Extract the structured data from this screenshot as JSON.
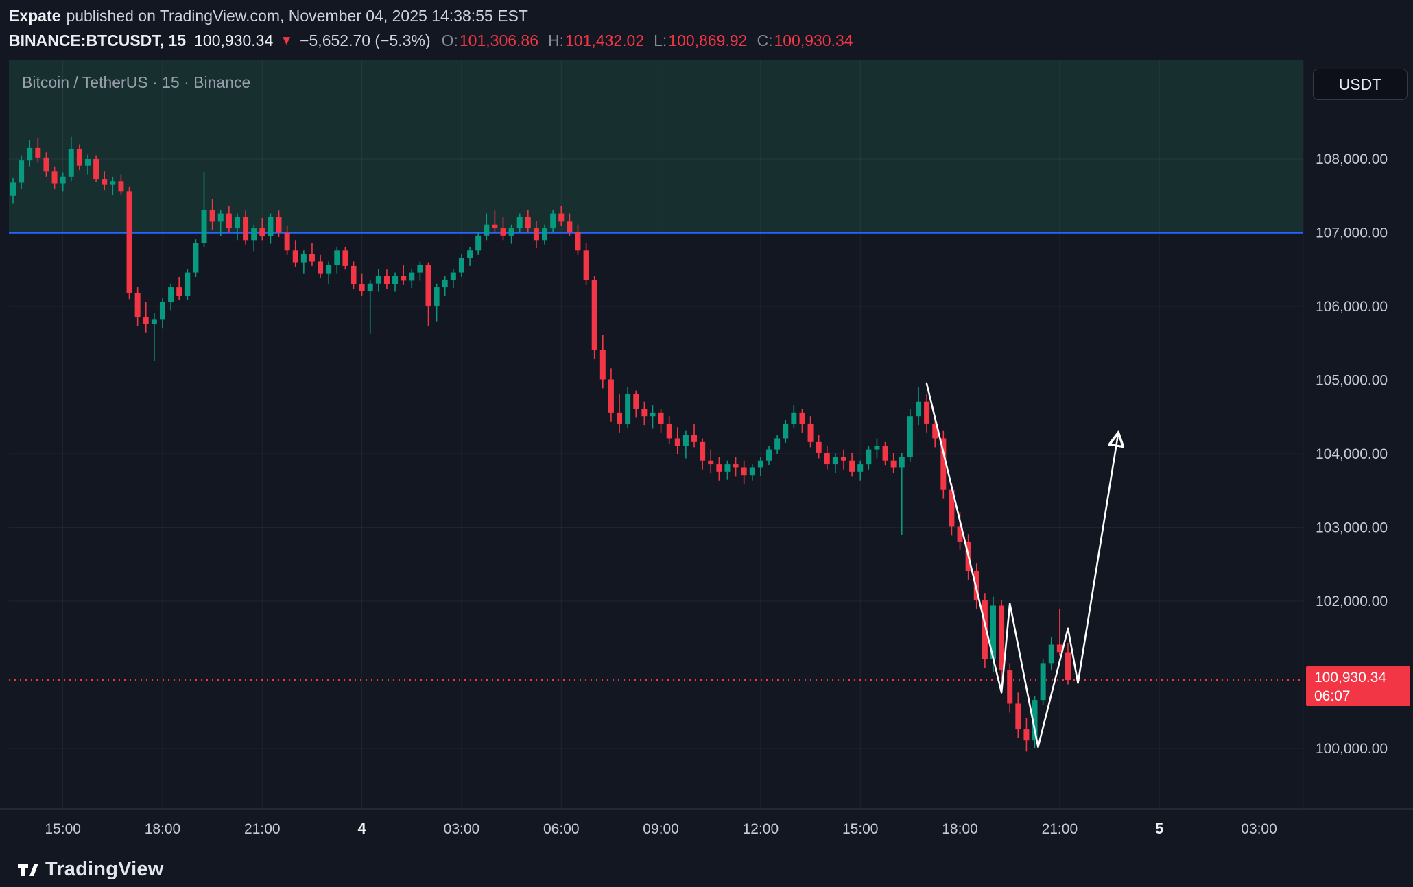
{
  "header": {
    "publisher": "Expate",
    "published": "published on TradingView.com, November 04, 2025 14:38:55 EST",
    "symbol": "BINANCE:BTCUSDT, 15",
    "last_price": "100,930.34",
    "direction": "▼",
    "change": "−5,652.70 (−5.3%)",
    "ohlc": [
      {
        "label": "O:",
        "value": "101,306.86"
      },
      {
        "label": "H:",
        "value": "101,432.02"
      },
      {
        "label": "L:",
        "value": "100,869.92"
      },
      {
        "label": "C:",
        "value": "100,930.34"
      }
    ]
  },
  "chart": {
    "title": "Bitcoin / TetherUS · 15 · Binance",
    "currency_button": "USDT",
    "price_badge": {
      "price": "100,930.34",
      "countdown": "06:07"
    }
  },
  "footer": {
    "brand": "TradingView"
  },
  "chart_data": {
    "type": "candlestick",
    "symbol": "BINANCE:BTCUSDT",
    "interval_minutes": 15,
    "title": "Bitcoin / TetherUS · 15 · Binance",
    "ylim": [
      99182,
      109349
    ],
    "grid": true,
    "legend_position": "none",
    "colors": {
      "up": "#089981",
      "down": "#f23645",
      "zone": "rgba(46,143,103,0.20)",
      "projection": "#ffffff"
    },
    "zone": {
      "from_price": 107000,
      "fill": "rgba(46,143,103,0.20)"
    },
    "current_price": 100930.34,
    "horizontal_lines": [
      {
        "price": 107000,
        "color": "#2962ff",
        "style": "solid",
        "name": "resistance-line"
      },
      {
        "price": 100930.34,
        "color": "#f23645",
        "style": "dotted",
        "name": "current-price-line"
      }
    ],
    "price_axis_labels": [
      {
        "price": 108000,
        "label": "108,000.00"
      },
      {
        "price": 107000,
        "label": "107,000.00"
      },
      {
        "price": 106000,
        "label": "106,000.00"
      },
      {
        "price": 105000,
        "label": "105,000.00"
      },
      {
        "price": 104000,
        "label": "104,000.00"
      },
      {
        "price": 103000,
        "label": "103,000.00"
      },
      {
        "price": 102000,
        "label": "102,000.00"
      },
      {
        "price": 100000,
        "label": "100,000.00"
      }
    ],
    "time_axis_labels": [
      {
        "label": "15:00",
        "index": 6
      },
      {
        "label": "18:00",
        "index": 18
      },
      {
        "label": "21:00",
        "index": 30
      },
      {
        "label": "4",
        "index": 42,
        "bold": true
      },
      {
        "label": "03:00",
        "index": 54
      },
      {
        "label": "06:00",
        "index": 66
      },
      {
        "label": "09:00",
        "index": 78
      },
      {
        "label": "12:00",
        "index": 90
      },
      {
        "label": "15:00",
        "index": 102
      },
      {
        "label": "18:00",
        "index": 114
      },
      {
        "label": "21:00",
        "index": 126
      },
      {
        "label": "5",
        "index": 138,
        "bold": true
      },
      {
        "label": "03:00",
        "index": 150
      }
    ],
    "candles": [
      [
        107500,
        107750,
        107400,
        107680
      ],
      [
        107680,
        108050,
        107600,
        107980
      ],
      [
        107980,
        108260,
        107900,
        108150
      ],
      [
        108150,
        108290,
        107950,
        108020
      ],
      [
        108020,
        108090,
        107760,
        107830
      ],
      [
        107830,
        107900,
        107590,
        107670
      ],
      [
        107670,
        107820,
        107560,
        107760
      ],
      [
        107760,
        108300,
        107700,
        108140
      ],
      [
        108140,
        108200,
        107850,
        107910
      ],
      [
        107910,
        108060,
        107790,
        108000
      ],
      [
        108000,
        108050,
        107690,
        107730
      ],
      [
        107730,
        107830,
        107580,
        107650
      ],
      [
        107650,
        107760,
        107510,
        107700
      ],
      [
        107700,
        107790,
        107520,
        107560
      ],
      [
        107560,
        107620,
        106100,
        106180
      ],
      [
        106180,
        106260,
        105740,
        105860
      ],
      [
        105860,
        106060,
        105640,
        105760
      ],
      [
        105760,
        105910,
        105260,
        105820
      ],
      [
        105820,
        106110,
        105700,
        106060
      ],
      [
        106060,
        106310,
        105950,
        106260
      ],
      [
        106260,
        106400,
        106090,
        106140
      ],
      [
        106140,
        106510,
        106090,
        106460
      ],
      [
        106460,
        106910,
        106400,
        106860
      ],
      [
        106860,
        107820,
        106800,
        107310
      ],
      [
        107310,
        107460,
        107040,
        107150
      ],
      [
        107150,
        107310,
        106950,
        107260
      ],
      [
        107260,
        107360,
        107000,
        107060
      ],
      [
        107060,
        107260,
        106900,
        107210
      ],
      [
        107210,
        107300,
        106840,
        106900
      ],
      [
        106900,
        107110,
        106750,
        107060
      ],
      [
        107060,
        107200,
        106900,
        106950
      ],
      [
        106950,
        107260,
        106850,
        107210
      ],
      [
        107210,
        107300,
        106940,
        107000
      ],
      [
        107000,
        107100,
        106700,
        106760
      ],
      [
        106760,
        106900,
        106540,
        106600
      ],
      [
        106600,
        106760,
        106450,
        106710
      ],
      [
        106710,
        106860,
        106550,
        106610
      ],
      [
        106610,
        106700,
        106390,
        106450
      ],
      [
        106450,
        106610,
        106300,
        106560
      ],
      [
        106560,
        106810,
        106450,
        106760
      ],
      [
        106760,
        106810,
        106500,
        106550
      ],
      [
        106550,
        106610,
        106240,
        106300
      ],
      [
        106300,
        106450,
        106140,
        106210
      ],
      [
        106210,
        106360,
        105630,
        106310
      ],
      [
        106310,
        106510,
        106200,
        106410
      ],
      [
        106410,
        106500,
        106240,
        106300
      ],
      [
        106300,
        106460,
        106200,
        106410
      ],
      [
        106410,
        106560,
        106290,
        106350
      ],
      [
        106350,
        106510,
        106250,
        106460
      ],
      [
        106460,
        106610,
        106350,
        106560
      ],
      [
        106560,
        106600,
        105740,
        106010
      ],
      [
        106010,
        106310,
        105790,
        106260
      ],
      [
        106260,
        106410,
        106140,
        106360
      ],
      [
        106360,
        106510,
        106250,
        106460
      ],
      [
        106460,
        106710,
        106400,
        106660
      ],
      [
        106660,
        106810,
        106550,
        106760
      ],
      [
        106760,
        107010,
        106700,
        106960
      ],
      [
        106960,
        107260,
        106900,
        107110
      ],
      [
        107110,
        107300,
        107000,
        107060
      ],
      [
        107060,
        107210,
        106900,
        106960
      ],
      [
        106960,
        107110,
        106850,
        107060
      ],
      [
        107060,
        107260,
        107000,
        107210
      ],
      [
        107210,
        107310,
        107000,
        107060
      ],
      [
        107060,
        107160,
        106790,
        106900
      ],
      [
        106900,
        107110,
        106840,
        107060
      ],
      [
        107060,
        107310,
        107000,
        107260
      ],
      [
        107260,
        107360,
        107090,
        107150
      ],
      [
        107150,
        107260,
        106950,
        107010
      ],
      [
        107010,
        107110,
        106700,
        106760
      ],
      [
        106760,
        106860,
        106290,
        106360
      ],
      [
        106360,
        106410,
        105290,
        105410
      ],
      [
        105410,
        105610,
        104890,
        105010
      ],
      [
        105010,
        105160,
        104440,
        104560
      ],
      [
        104560,
        104810,
        104290,
        104410
      ],
      [
        104410,
        104910,
        104350,
        104810
      ],
      [
        104810,
        104860,
        104490,
        104610
      ],
      [
        104610,
        104710,
        104390,
        104510
      ],
      [
        104510,
        104660,
        104340,
        104560
      ],
      [
        104560,
        104610,
        104290,
        104410
      ],
      [
        104410,
        104510,
        104140,
        104210
      ],
      [
        104210,
        104360,
        103990,
        104110
      ],
      [
        104110,
        104310,
        103940,
        104260
      ],
      [
        104260,
        104410,
        104090,
        104160
      ],
      [
        104160,
        104210,
        103790,
        103910
      ],
      [
        103910,
        104060,
        103740,
        103860
      ],
      [
        103860,
        103960,
        103640,
        103760
      ],
      [
        103760,
        103910,
        103650,
        103860
      ],
      [
        103860,
        103960,
        103690,
        103810
      ],
      [
        103810,
        103910,
        103590,
        103710
      ],
      [
        103710,
        103860,
        103640,
        103810
      ],
      [
        103810,
        103960,
        103700,
        103910
      ],
      [
        103910,
        104110,
        103850,
        104060
      ],
      [
        104060,
        104260,
        104000,
        104210
      ],
      [
        104210,
        104460,
        104150,
        104410
      ],
      [
        104410,
        104660,
        104350,
        104560
      ],
      [
        104560,
        104610,
        104290,
        104410
      ],
      [
        104410,
        104510,
        104090,
        104160
      ],
      [
        104160,
        104260,
        103940,
        104010
      ],
      [
        104010,
        104110,
        103790,
        103860
      ],
      [
        103860,
        104010,
        103740,
        103960
      ],
      [
        103960,
        104060,
        103790,
        103910
      ],
      [
        103910,
        104010,
        103690,
        103760
      ],
      [
        103760,
        103910,
        103640,
        103860
      ],
      [
        103860,
        104110,
        103790,
        104060
      ],
      [
        104060,
        104210,
        103940,
        104110
      ],
      [
        104110,
        104160,
        103840,
        103910
      ],
      [
        103910,
        104010,
        103740,
        103810
      ],
      [
        103810,
        104010,
        102900,
        103960
      ],
      [
        103960,
        104610,
        103890,
        104510
      ],
      [
        104510,
        104910,
        104390,
        104710
      ],
      [
        104710,
        104810,
        104290,
        104410
      ],
      [
        104410,
        104510,
        104090,
        104210
      ],
      [
        104210,
        104310,
        103390,
        103510
      ],
      [
        103510,
        103610,
        102890,
        103010
      ],
      [
        103010,
        103210,
        102690,
        102810
      ],
      [
        102810,
        102910,
        102290,
        102410
      ],
      [
        102410,
        102510,
        101890,
        102010
      ],
      [
        102010,
        102110,
        101090,
        101210
      ],
      [
        101210,
        102060,
        101040,
        101940
      ],
      [
        101940,
        102010,
        100940,
        101060
      ],
      [
        101060,
        101160,
        100490,
        100610
      ],
      [
        100610,
        100760,
        100140,
        100260
      ],
      [
        100260,
        100410,
        99960,
        100110
      ],
      [
        100110,
        100710,
        100010,
        100660
      ],
      [
        100660,
        101210,
        100590,
        101160
      ],
      [
        101160,
        101510,
        101060,
        101410
      ],
      [
        101410,
        101900,
        101260,
        101310
      ],
      [
        101306.86,
        101432.02,
        100869.92,
        100930.34
      ]
    ],
    "projection": {
      "points": [
        [
          110,
          104950
        ],
        [
          119,
          100760
        ],
        [
          120,
          101970
        ],
        [
          123.4,
          100020
        ],
        [
          127,
          101630
        ],
        [
          128.2,
          100890
        ],
        [
          133,
          104240
        ]
      ],
      "color": "#ffffff",
      "arrow_end": true
    }
  }
}
